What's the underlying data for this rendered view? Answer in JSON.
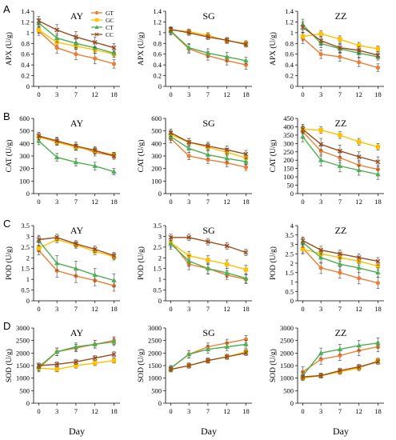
{
  "legend": [
    {
      "name": "GT",
      "color": "#ED7D31",
      "marker": "circle"
    },
    {
      "name": "GC",
      "color": "#FFC000",
      "marker": "square"
    },
    {
      "name": "CT",
      "color": "#4CAF50",
      "marker": "triangle"
    },
    {
      "name": "CC",
      "color": "#9C4A1A",
      "marker": "x"
    }
  ],
  "rows": [
    "A",
    "B",
    "C",
    "D"
  ],
  "columns": [
    "AY",
    "SG",
    "ZZ"
  ],
  "xlabel": "Day",
  "chart_data": [
    {
      "type": "line",
      "row": "A",
      "title": "AY",
      "ylabel": "APX (U/g)",
      "x": [
        0,
        3,
        7,
        12,
        18
      ],
      "ylim": [
        0,
        1.4
      ],
      "yticks": [
        0,
        0.2,
        0.4,
        0.6,
        0.8,
        1,
        1.2,
        1.4
      ],
      "series": [
        {
          "name": "GT",
          "values": [
            1.03,
            0.72,
            0.6,
            0.52,
            0.42
          ],
          "err": [
            0.08,
            0.1,
            0.1,
            0.1,
            0.08
          ]
        },
        {
          "name": "GC",
          "values": [
            1.05,
            0.82,
            0.75,
            0.68,
            0.6
          ],
          "err": [
            0.06,
            0.06,
            0.06,
            0.06,
            0.06
          ]
        },
        {
          "name": "CT",
          "values": [
            1.18,
            0.9,
            0.8,
            0.72,
            0.62
          ],
          "err": [
            0.08,
            0.08,
            0.08,
            0.1,
            0.08
          ]
        },
        {
          "name": "CC",
          "values": [
            1.22,
            1.05,
            0.92,
            0.82,
            0.72
          ],
          "err": [
            0.08,
            0.1,
            0.1,
            0.1,
            0.08
          ]
        }
      ]
    },
    {
      "type": "line",
      "row": "A",
      "title": "SG",
      "ylabel": "APX (U/g)",
      "x": [
        0,
        3,
        7,
        12,
        18
      ],
      "ylim": [
        0,
        1.4
      ],
      "yticks": [
        0,
        0.2,
        0.4,
        0.6,
        0.8,
        1,
        1.2,
        1.4
      ],
      "series": [
        {
          "name": "GT",
          "values": [
            1.02,
            0.7,
            0.57,
            0.48,
            0.4
          ],
          "err": [
            0.06,
            0.08,
            0.08,
            0.08,
            0.08
          ]
        },
        {
          "name": "GC",
          "values": [
            1.05,
            1.02,
            0.95,
            0.85,
            0.8
          ],
          "err": [
            0.05,
            0.05,
            0.05,
            0.05,
            0.05
          ]
        },
        {
          "name": "CT",
          "values": [
            1.03,
            0.72,
            0.62,
            0.55,
            0.48
          ],
          "err": [
            0.06,
            0.08,
            0.08,
            0.08,
            0.06
          ]
        },
        {
          "name": "CC",
          "values": [
            1.06,
            1.0,
            0.92,
            0.86,
            0.78
          ],
          "err": [
            0.05,
            0.05,
            0.05,
            0.05,
            0.05
          ]
        }
      ]
    },
    {
      "type": "line",
      "row": "A",
      "title": "ZZ",
      "ylabel": "APX (U/g)",
      "x": [
        0,
        3,
        7,
        12,
        18
      ],
      "ylim": [
        0,
        1.4
      ],
      "yticks": [
        0,
        0.2,
        0.4,
        0.6,
        0.8,
        1,
        1.2,
        1.4
      ],
      "series": [
        {
          "name": "GT",
          "values": [
            0.9,
            0.6,
            0.55,
            0.45,
            0.35
          ],
          "err": [
            0.1,
            0.08,
            0.08,
            0.08,
            0.07
          ]
        },
        {
          "name": "GC",
          "values": [
            0.93,
            0.98,
            0.88,
            0.76,
            0.7
          ],
          "err": [
            0.08,
            0.06,
            0.06,
            0.06,
            0.05
          ]
        },
        {
          "name": "CT",
          "values": [
            1.15,
            0.8,
            0.7,
            0.62,
            0.55
          ],
          "err": [
            0.1,
            0.08,
            0.08,
            0.08,
            0.06
          ]
        },
        {
          "name": "CC",
          "values": [
            1.1,
            0.85,
            0.72,
            0.67,
            0.58
          ],
          "err": [
            0.1,
            0.08,
            0.08,
            0.07,
            0.06
          ]
        }
      ]
    },
    {
      "type": "line",
      "row": "B",
      "title": "AY",
      "ylabel": "CAT (U/g)",
      "x": [
        0,
        3,
        7,
        12,
        18
      ],
      "ylim": [
        0,
        600
      ],
      "yticks": [
        0,
        100,
        200,
        300,
        400,
        500,
        600
      ],
      "series": [
        {
          "name": "GT",
          "values": [
            450,
            415,
            380,
            330,
            300
          ],
          "err": [
            30,
            30,
            30,
            30,
            25
          ]
        },
        {
          "name": "GC",
          "values": [
            455,
            410,
            370,
            340,
            310
          ],
          "err": [
            25,
            25,
            25,
            25,
            20
          ]
        },
        {
          "name": "CT",
          "values": [
            420,
            290,
            250,
            220,
            175
          ],
          "err": [
            30,
            30,
            30,
            30,
            25
          ]
        },
        {
          "name": "CC",
          "values": [
            460,
            420,
            380,
            345,
            300
          ],
          "err": [
            30,
            30,
            30,
            30,
            25
          ]
        }
      ]
    },
    {
      "type": "line",
      "row": "B",
      "title": "SG",
      "ylabel": "CAT (U/g)",
      "x": [
        0,
        3,
        7,
        12,
        18
      ],
      "ylim": [
        0,
        600
      ],
      "yticks": [
        0,
        100,
        200,
        300,
        400,
        500,
        600
      ],
      "series": [
        {
          "name": "GT",
          "values": [
            440,
            300,
            270,
            245,
            210
          ],
          "err": [
            35,
            30,
            30,
            30,
            25
          ]
        },
        {
          "name": "GC",
          "values": [
            470,
            410,
            370,
            330,
            285
          ],
          "err": [
            30,
            30,
            30,
            30,
            25
          ]
        },
        {
          "name": "CT",
          "values": [
            455,
            360,
            310,
            280,
            255
          ],
          "err": [
            30,
            30,
            30,
            30,
            25
          ]
        },
        {
          "name": "CC",
          "values": [
            485,
            410,
            380,
            350,
            315
          ],
          "err": [
            30,
            30,
            30,
            30,
            30
          ]
        }
      ]
    },
    {
      "type": "line",
      "row": "B",
      "title": "ZZ",
      "ylabel": "CAT (U/g)",
      "x": [
        0,
        3,
        7,
        12,
        18
      ],
      "ylim": [
        0,
        450
      ],
      "yticks": [
        0,
        50,
        100,
        150,
        200,
        250,
        300,
        350,
        400,
        450
      ],
      "series": [
        {
          "name": "GT",
          "values": [
            370,
            255,
            215,
            170,
            145
          ],
          "err": [
            30,
            30,
            30,
            30,
            25
          ]
        },
        {
          "name": "GC",
          "values": [
            385,
            380,
            350,
            310,
            280
          ],
          "err": [
            20,
            20,
            20,
            20,
            20
          ]
        },
        {
          "name": "CT",
          "values": [
            340,
            200,
            165,
            140,
            115
          ],
          "err": [
            30,
            35,
            35,
            30,
            30
          ]
        },
        {
          "name": "CC",
          "values": [
            385,
            295,
            255,
            220,
            190
          ],
          "err": [
            30,
            35,
            35,
            30,
            30
          ]
        }
      ]
    },
    {
      "type": "line",
      "row": "C",
      "title": "AY",
      "ylabel": "POD (U/g)",
      "x": [
        0,
        3,
        7,
        12,
        18
      ],
      "ylim": [
        0,
        3.5
      ],
      "yticks": [
        0,
        0.5,
        1,
        1.5,
        2,
        2.5,
        3,
        3.5
      ],
      "series": [
        {
          "name": "GT",
          "values": [
            2.35,
            1.4,
            1.15,
            0.95,
            0.7
          ],
          "err": [
            0.2,
            0.3,
            0.3,
            0.25,
            0.25
          ]
        },
        {
          "name": "GC",
          "values": [
            2.45,
            2.85,
            2.6,
            2.3,
            2.05
          ],
          "err": [
            0.15,
            0.15,
            0.15,
            0.15,
            0.15
          ]
        },
        {
          "name": "CT",
          "values": [
            2.8,
            1.75,
            1.5,
            1.2,
            0.95
          ],
          "err": [
            0.25,
            0.35,
            0.35,
            0.3,
            0.3
          ]
        },
        {
          "name": "CC",
          "values": [
            2.85,
            2.95,
            2.65,
            2.4,
            2.1
          ],
          "err": [
            0.15,
            0.15,
            0.15,
            0.15,
            0.15
          ]
        }
      ]
    },
    {
      "type": "line",
      "row": "C",
      "title": "SG",
      "ylabel": "POD (U/g)",
      "x": [
        0,
        3,
        7,
        12,
        18
      ],
      "ylim": [
        0,
        3.5
      ],
      "yticks": [
        0,
        0.5,
        1,
        1.5,
        2,
        2.5,
        3,
        3.5
      ],
      "series": [
        {
          "name": "GT",
          "values": [
            2.75,
            1.7,
            1.5,
            1.2,
            1.0
          ],
          "err": [
            0.25,
            0.25,
            0.25,
            0.2,
            0.2
          ]
        },
        {
          "name": "GC",
          "values": [
            2.7,
            2.1,
            1.9,
            1.7,
            1.45
          ],
          "err": [
            0.2,
            0.2,
            0.2,
            0.2,
            0.2
          ]
        },
        {
          "name": "CT",
          "values": [
            2.65,
            1.85,
            1.5,
            1.3,
            1.05
          ],
          "err": [
            0.25,
            0.25,
            0.25,
            0.2,
            0.2
          ]
        },
        {
          "name": "CC",
          "values": [
            2.95,
            2.95,
            2.75,
            2.55,
            2.25
          ],
          "err": [
            0.15,
            0.15,
            0.15,
            0.15,
            0.15
          ]
        }
      ]
    },
    {
      "type": "line",
      "row": "C",
      "title": "ZZ",
      "ylabel": "POD (U/g)",
      "x": [
        0,
        3,
        7,
        12,
        18
      ],
      "ylim": [
        0,
        4
      ],
      "yticks": [
        0,
        0.5,
        1,
        1.5,
        2,
        2.5,
        3,
        3.5,
        4
      ],
      "series": [
        {
          "name": "GT",
          "values": [
            2.8,
            1.75,
            1.5,
            1.2,
            0.95
          ],
          "err": [
            0.3,
            0.3,
            0.3,
            0.3,
            0.3
          ]
        },
        {
          "name": "GC",
          "values": [
            2.75,
            2.5,
            2.3,
            2.1,
            1.85
          ],
          "err": [
            0.2,
            0.2,
            0.2,
            0.2,
            0.2
          ]
        },
        {
          "name": "CT",
          "values": [
            3.1,
            2.3,
            1.95,
            1.75,
            1.5
          ],
          "err": [
            0.25,
            0.3,
            0.3,
            0.25,
            0.25
          ]
        },
        {
          "name": "CC",
          "values": [
            3.2,
            2.7,
            2.5,
            2.3,
            2.1
          ],
          "err": [
            0.2,
            0.2,
            0.2,
            0.2,
            0.2
          ]
        }
      ]
    },
    {
      "type": "line",
      "row": "D",
      "title": "AY",
      "ylabel": "SOD (U/g)",
      "x": [
        0,
        3,
        7,
        12,
        18
      ],
      "ylim": [
        0,
        3000
      ],
      "yticks": [
        0,
        500,
        1000,
        1500,
        2000,
        2500,
        3000
      ],
      "series": [
        {
          "name": "GT",
          "values": [
            1400,
            2050,
            2200,
            2350,
            2500
          ],
          "err": [
            150,
            150,
            150,
            150,
            150
          ]
        },
        {
          "name": "GC",
          "values": [
            1400,
            1350,
            1500,
            1600,
            1700
          ],
          "err": [
            100,
            100,
            100,
            100,
            100
          ]
        },
        {
          "name": "CT",
          "values": [
            1450,
            2050,
            2250,
            2350,
            2450
          ],
          "err": [
            150,
            150,
            150,
            150,
            150
          ]
        },
        {
          "name": "CC",
          "values": [
            1500,
            1550,
            1650,
            1800,
            1950
          ],
          "err": [
            100,
            100,
            100,
            100,
            100
          ]
        }
      ]
    },
    {
      "type": "line",
      "row": "D",
      "title": "SG",
      "ylabel": "SOD (U/g)",
      "x": [
        0,
        3,
        7,
        12,
        18
      ],
      "ylim": [
        0,
        3000
      ],
      "yticks": [
        0,
        500,
        1000,
        1500,
        2000,
        2500,
        3000
      ],
      "series": [
        {
          "name": "GT",
          "values": [
            1400,
            1950,
            2250,
            2400,
            2550
          ],
          "err": [
            100,
            150,
            150,
            150,
            150
          ]
        },
        {
          "name": "GC",
          "values": [
            1350,
            1500,
            1700,
            1850,
            2050
          ],
          "err": [
            100,
            100,
            100,
            100,
            100
          ]
        },
        {
          "name": "CT",
          "values": [
            1400,
            1950,
            2150,
            2250,
            2350
          ],
          "err": [
            100,
            150,
            150,
            150,
            150
          ]
        },
        {
          "name": "CC",
          "values": [
            1350,
            1500,
            1700,
            1850,
            2000
          ],
          "err": [
            100,
            100,
            100,
            100,
            100
          ]
        }
      ]
    },
    {
      "type": "line",
      "row": "D",
      "title": "ZZ",
      "ylabel": "SOD (U/g)",
      "x": [
        0,
        3,
        7,
        12,
        18
      ],
      "ylim": [
        0,
        3000
      ],
      "yticks": [
        0,
        500,
        1000,
        1500,
        2000,
        2500,
        3000
      ],
      "series": [
        {
          "name": "GT",
          "values": [
            1250,
            1750,
            1900,
            2100,
            2250
          ],
          "err": [
            200,
            200,
            200,
            200,
            200
          ]
        },
        {
          "name": "GC",
          "values": [
            1000,
            1100,
            1250,
            1400,
            1700
          ],
          "err": [
            100,
            100,
            100,
            100,
            100
          ]
        },
        {
          "name": "CT",
          "values": [
            1100,
            2000,
            2150,
            2300,
            2400
          ],
          "err": [
            150,
            200,
            200,
            200,
            200
          ]
        },
        {
          "name": "CC",
          "values": [
            1050,
            1100,
            1300,
            1450,
            1650
          ],
          "err": [
            100,
            100,
            100,
            100,
            100
          ]
        }
      ]
    }
  ]
}
